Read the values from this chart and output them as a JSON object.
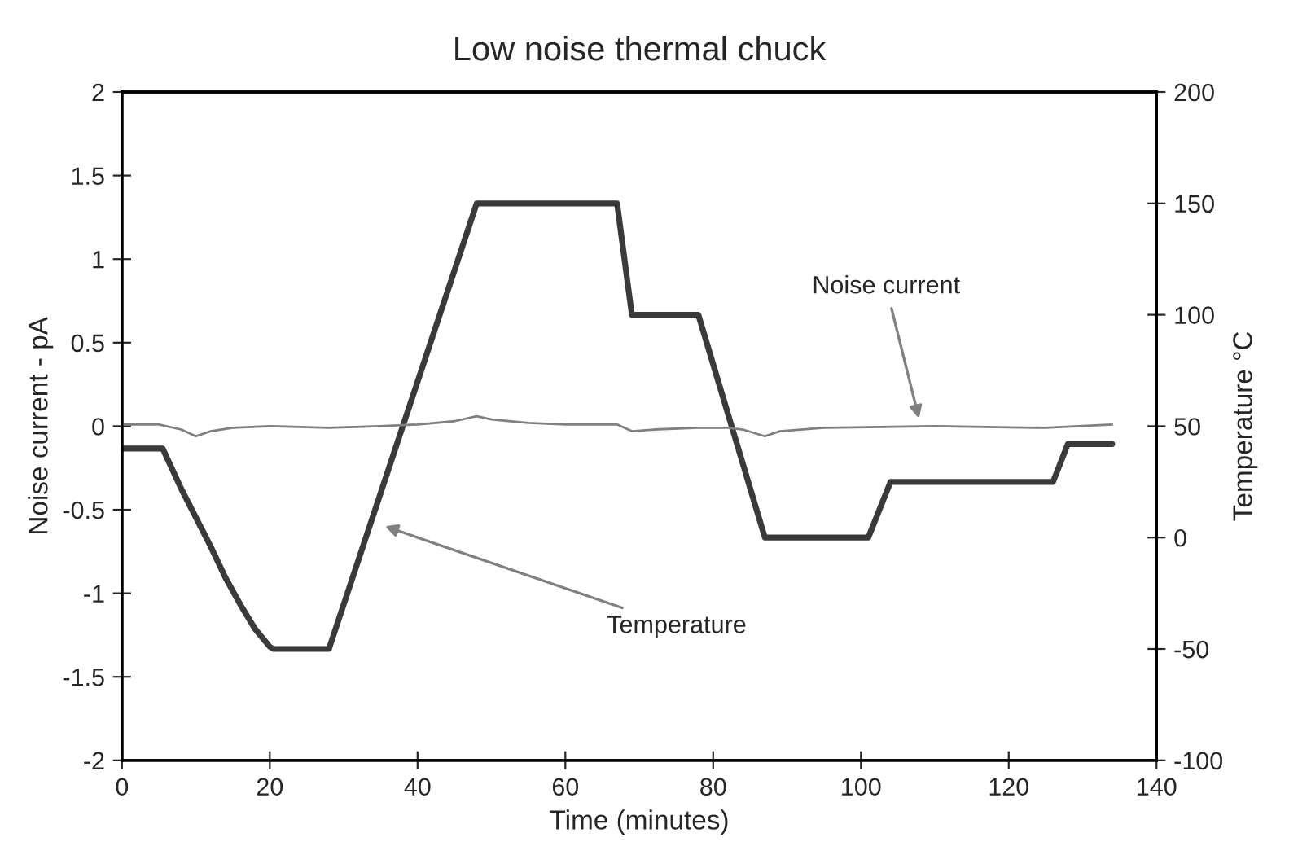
{
  "chart_data": {
    "type": "line",
    "title": "Low noise thermal chuck",
    "xlabel": "Time (minutes)",
    "ylabel": "Noise current - pA",
    "y2label": "Temperature °C",
    "xlim": [
      0,
      140
    ],
    "xticks": [
      0,
      20,
      40,
      60,
      80,
      100,
      120,
      140
    ],
    "ylim": [
      -2,
      2
    ],
    "yticks": [
      -2,
      -1.5,
      -1,
      -0.5,
      0,
      0.5,
      1,
      1.5,
      2
    ],
    "y2lim": [
      -100,
      200
    ],
    "y2ticks": [
      -100,
      -50,
      0,
      50,
      100,
      150,
      200
    ],
    "grid": false,
    "legend": false,
    "marker": "none",
    "line_style": "solid",
    "series": [
      {
        "color": "#808080",
        "x": [
          0,
          5,
          8,
          10,
          12,
          15,
          20,
          28,
          35,
          40,
          45,
          48,
          50,
          55,
          60,
          67,
          69,
          72,
          78,
          82,
          84,
          87,
          89,
          95,
          110,
          125,
          134
        ],
        "values": [
          0.01,
          0.01,
          -0.02,
          -0.06,
          -0.03,
          -0.01,
          0,
          -0.01,
          0,
          0.01,
          0.03,
          0.06,
          0.04,
          0.02,
          0.01,
          0.01,
          -0.03,
          -0.02,
          -0.01,
          -0.01,
          -0.02,
          -0.06,
          -0.03,
          -0.01,
          0,
          -0.01,
          0.01
        ]
      },
      {
        "color": "#3a3a3a",
        "axis": "y2",
        "x": [
          0,
          5.5,
          8,
          10,
          12,
          14,
          16,
          18,
          20,
          20.5,
          28,
          30,
          38,
          48,
          67,
          69,
          78,
          87,
          101,
          104,
          126,
          128,
          134
        ],
        "values": [
          40,
          40,
          22,
          9,
          -4,
          -18,
          -30,
          -41,
          -49,
          -50,
          -50,
          -30,
          50,
          150,
          150,
          100,
          100,
          0,
          0,
          25,
          25,
          42,
          42
        ]
      }
    ],
    "annotations": [
      {
        "text": "Noise current",
        "x": 108,
        "y": 0.02
      },
      {
        "text": "Temperature",
        "x": 35,
        "y": -0.59
      }
    ]
  }
}
